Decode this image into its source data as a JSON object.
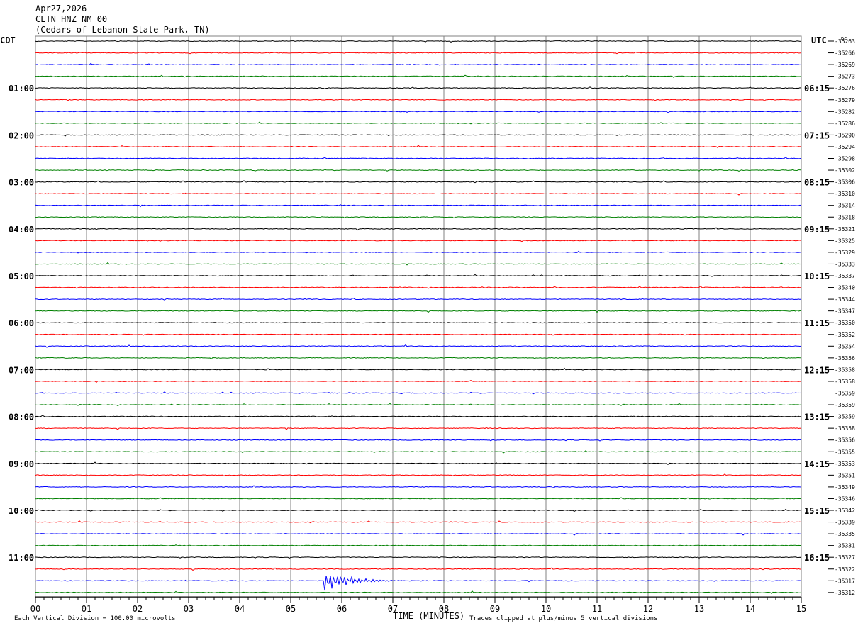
{
  "header": {
    "date": "Apr27,2026",
    "station": "CLTN HNZ NM 00",
    "location": "(Cedars of Lebanon State Park, TN)"
  },
  "labels": {
    "left_zone": "CDT",
    "right_zone": "UTC",
    "dc_label": "DC"
  },
  "footer": {
    "vertical_division": "Each Vertical Division =  100.00 microvolts",
    "xlabel": "TIME (MINUTES)",
    "clip_note": "Traces clipped at plus/minus 5 vertical divisions"
  },
  "colors": {
    "grid": "#808080",
    "trace_cycle": [
      "#000000",
      "#ff0000",
      "#0000ff",
      "#008000"
    ]
  },
  "chart_data": {
    "type": "line",
    "title": "",
    "xlabel": "TIME (MINUTES)",
    "xlim": [
      0,
      15
    ],
    "x_ticks": [
      "00",
      "01",
      "02",
      "03",
      "04",
      "05",
      "06",
      "07",
      "08",
      "09",
      "10",
      "11",
      "12",
      "13",
      "14",
      "15"
    ],
    "row_count": 48,
    "left_hour_labels": [
      {
        "row": 4,
        "text": "01:00"
      },
      {
        "row": 8,
        "text": "02:00"
      },
      {
        "row": 12,
        "text": "03:00"
      },
      {
        "row": 16,
        "text": "04:00"
      },
      {
        "row": 20,
        "text": "05:00"
      },
      {
        "row": 24,
        "text": "06:00"
      },
      {
        "row": 28,
        "text": "07:00"
      },
      {
        "row": 32,
        "text": "08:00"
      },
      {
        "row": 36,
        "text": "09:00"
      },
      {
        "row": 40,
        "text": "10:00"
      },
      {
        "row": 44,
        "text": "11:00"
      }
    ],
    "right_hour_labels": [
      {
        "row": 4,
        "text": "06:15"
      },
      {
        "row": 8,
        "text": "07:15"
      },
      {
        "row": 12,
        "text": "08:15"
      },
      {
        "row": 16,
        "text": "09:15"
      },
      {
        "row": 20,
        "text": "10:15"
      },
      {
        "row": 24,
        "text": "11:15"
      },
      {
        "row": 28,
        "text": "12:15"
      },
      {
        "row": 32,
        "text": "13:15"
      },
      {
        "row": 36,
        "text": "14:15"
      },
      {
        "row": 40,
        "text": "15:15"
      },
      {
        "row": 44,
        "text": "16:15"
      }
    ],
    "dc_offsets": [
      "-35263",
      "-35266",
      "-35269",
      "-35273",
      "-35276",
      "-35279",
      "-35282",
      "-35286",
      "-35290",
      "-35294",
      "-35298",
      "-35302",
      "-35306",
      "-35310",
      "-35314",
      "-35318",
      "-35321",
      "-35325",
      "-35329",
      "-35333",
      "-35337",
      "-35340",
      "-35344",
      "-35347",
      "-35350",
      "-35352",
      "-35354",
      "-35356",
      "-35358",
      "-35358",
      "-35359",
      "-35359",
      "-35359",
      "-35358",
      "-35356",
      "-35355",
      "-35353",
      "-35351",
      "-35349",
      "-35346",
      "-35342",
      "-35339",
      "-35335",
      "-35331",
      "-35327",
      "-35322",
      "-35317",
      "-35312"
    ],
    "event": {
      "row": 46,
      "start_minute": 5.65,
      "peak_divisions": 1.4
    }
  }
}
